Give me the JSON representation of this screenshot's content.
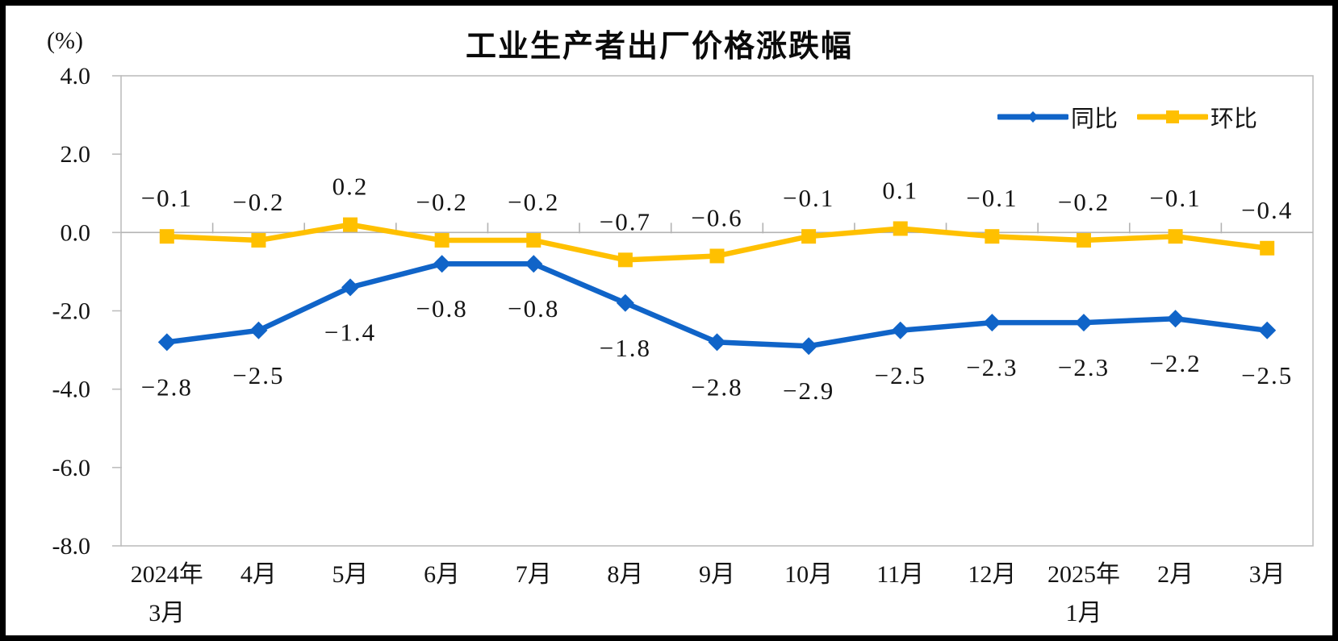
{
  "frame": {
    "border_color": "#000000",
    "background": "#ffffff"
  },
  "chart_data": {
    "type": "line",
    "title": "工业生产者出厂价格涨跌幅",
    "unit_label": "(%)",
    "categories": [
      "2024年\n3月",
      "4月",
      "5月",
      "6月",
      "7月",
      "8月",
      "9月",
      "10月",
      "11月",
      "12月",
      "2025年\n1月",
      "2月",
      "3月"
    ],
    "series": [
      {
        "name": "同比",
        "color": "#1064C8",
        "marker": "diamond",
        "values": [
          -2.8,
          -2.5,
          -1.4,
          -0.8,
          -0.8,
          -1.8,
          -2.8,
          -2.9,
          -2.5,
          -2.3,
          -2.3,
          -2.2,
          -2.5
        ],
        "label_position": "below"
      },
      {
        "name": "环比",
        "color": "#FFC000",
        "marker": "square",
        "values": [
          -0.1,
          -0.2,
          0.2,
          -0.2,
          -0.2,
          -0.7,
          -0.6,
          -0.1,
          0.1,
          -0.1,
          -0.2,
          -0.1,
          -0.4
        ],
        "label_position": "above"
      }
    ],
    "y_axis": {
      "min": -8.0,
      "max": 4.0,
      "tick_step": 2.0,
      "tick_labels": [
        "4.0",
        "2.0",
        "0.0",
        "-2.0",
        "-4.0",
        "-6.0",
        "-8.0"
      ]
    },
    "legend_position": "top-right",
    "grid": "off",
    "axis_color": "#BEBEBE",
    "zero_line_color": "#B3B3B3"
  }
}
